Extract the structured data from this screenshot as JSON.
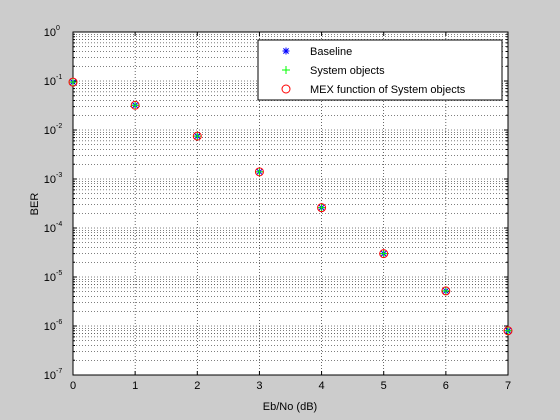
{
  "chart_data": {
    "type": "scatter",
    "title": "",
    "xlabel": "Eb/No (dB)",
    "ylabel": "BER",
    "xlim": [
      0,
      7
    ],
    "ylim": [
      1e-07,
      1
    ],
    "yscale": "log",
    "grid": true,
    "legend_position": "top-right",
    "x_tick_labels": [
      "0",
      "1",
      "2",
      "3",
      "4",
      "5",
      "6",
      "7"
    ],
    "y_tick_labels": [
      {
        "base": "10",
        "exp": "-7"
      },
      {
        "base": "10",
        "exp": "-6"
      },
      {
        "base": "10",
        "exp": "-5"
      },
      {
        "base": "10",
        "exp": "-4"
      },
      {
        "base": "10",
        "exp": "-3"
      },
      {
        "base": "10",
        "exp": "-2"
      },
      {
        "base": "10",
        "exp": "-1"
      },
      {
        "base": "10",
        "exp": "0"
      }
    ],
    "series": [
      {
        "name": "Baseline",
        "marker": "asterisk",
        "color": "#0000ff",
        "x": [
          0,
          1,
          2,
          3,
          4,
          5,
          6,
          7
        ],
        "y": [
          0.095,
          0.032,
          0.0075,
          0.0014,
          0.00026,
          3e-05,
          5.2e-06,
          8e-07
        ]
      },
      {
        "name": "System objects",
        "marker": "plus",
        "color": "#00ff00",
        "x": [
          0,
          1,
          2,
          3,
          4,
          5,
          6,
          7
        ],
        "y": [
          0.095,
          0.032,
          0.0075,
          0.0014,
          0.00026,
          3e-05,
          5.2e-06,
          8e-07
        ]
      },
      {
        "name": "MEX function of System objects",
        "marker": "circle",
        "color": "#ff0000",
        "x": [
          0,
          1,
          2,
          3,
          4,
          5,
          6,
          7
        ],
        "y": [
          0.095,
          0.032,
          0.0075,
          0.0014,
          0.00026,
          3e-05,
          5.2e-06,
          8e-07
        ]
      }
    ]
  }
}
